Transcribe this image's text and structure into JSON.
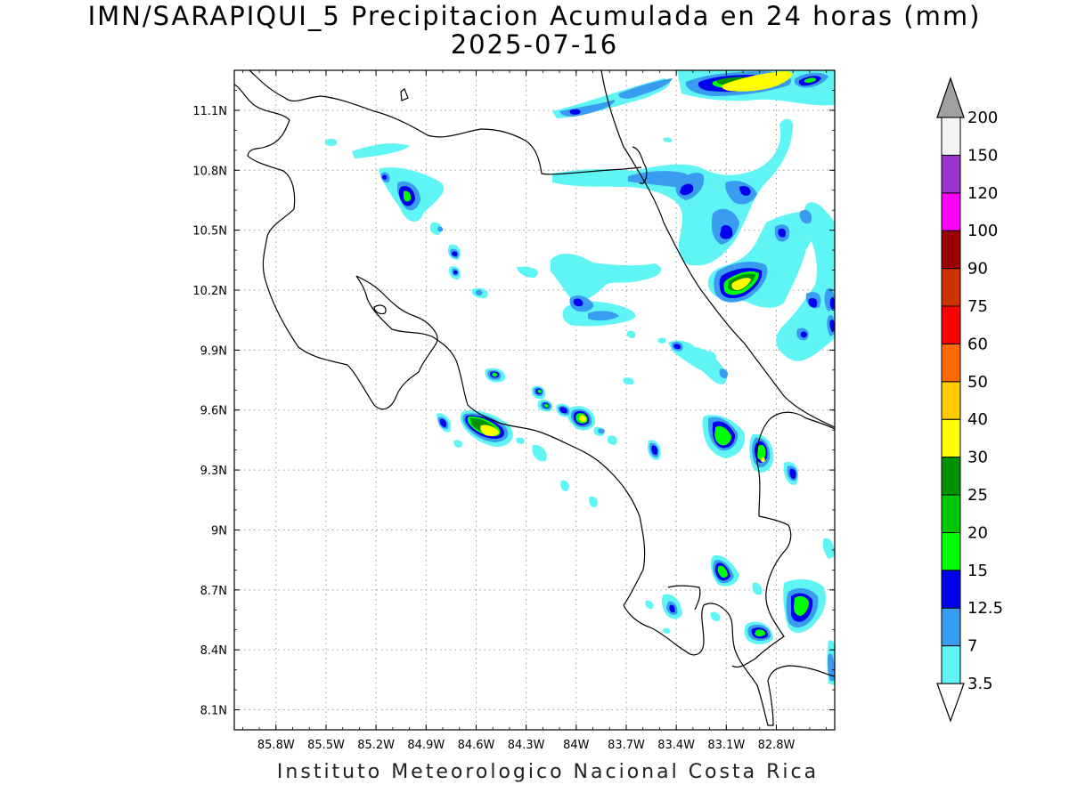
{
  "title_line1": "IMN/SARAPIQUI_5 Precipitacion Acumulada en 24 horas (mm)",
  "title_line2": "2025-07-16",
  "footer": "Instituto Meteorologico Nacional Costa Rica",
  "map": {
    "lon_range": [
      -86.05,
      -82.45
    ],
    "lat_range": [
      8.0,
      11.3
    ],
    "lon_ticks": [
      "85.8W",
      "85.5W",
      "85.2W",
      "84.9W",
      "84.6W",
      "84.3W",
      "84W",
      "83.7W",
      "83.4W",
      "83.1W",
      "82.8W"
    ],
    "lat_ticks": [
      "8.1N",
      "8.4N",
      "8.7N",
      "9N",
      "9.3N",
      "9.6N",
      "9.9N",
      "10.2N",
      "10.5N",
      "10.8N",
      "11.1N"
    ],
    "grid": true
  },
  "colorbar": {
    "labels": [
      "3.5",
      "7",
      "12.5",
      "15",
      "20",
      "25",
      "30",
      "40",
      "50",
      "60",
      "75",
      "90",
      "100",
      "120",
      "150",
      "200"
    ],
    "colors": [
      "#ffffff",
      "#5ff5f5",
      "#3a9cf0",
      "#0000ee",
      "#00ff00",
      "#00c800",
      "#009000",
      "#ffff00",
      "#ffcc00",
      "#ff6a00",
      "#ff0000",
      "#cc3300",
      "#9b0000",
      "#ff00ff",
      "#9933cc",
      "#f4f4f4",
      "#a0a0a0"
    ]
  }
}
